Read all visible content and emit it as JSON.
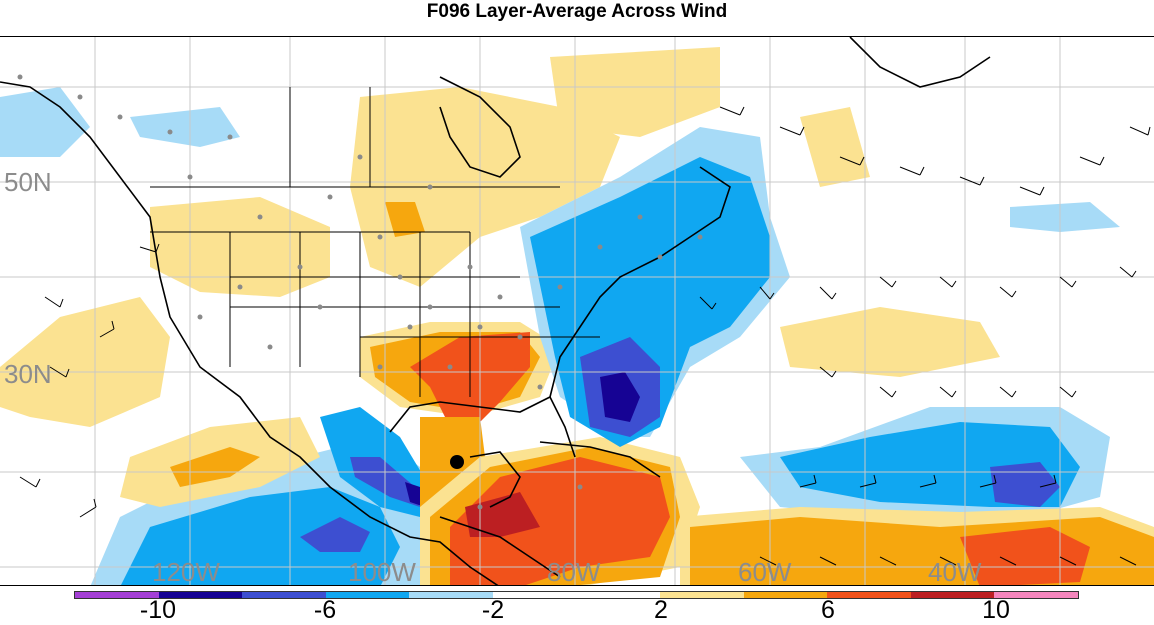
{
  "title": "F096 Layer-Average Across Wind",
  "map": {
    "lat_labels": [
      "50N",
      "30N"
    ],
    "lon_labels": [
      "120W",
      "100W",
      "80W",
      "60W",
      "40W"
    ]
  },
  "colorbar": {
    "colors": [
      "#a43fd5",
      "#160394",
      "#3d4fd1",
      "#10a7f1",
      "#a7dbf7",
      "#ffffff",
      "#ffffff",
      "#fbe291",
      "#f6a70e",
      "#f1521b",
      "#bc1f22",
      "#f586bd"
    ],
    "tick_labels": [
      "-10",
      "-6",
      "-2",
      "2",
      "6",
      "10"
    ]
  },
  "legend_colors": {
    "neg_strong": "#160394",
    "neg_medium": "#3d4fd1",
    "neg_light": "#10a7f1",
    "neg_faint": "#a7dbf7",
    "pos_faint": "#fbe291",
    "pos_light": "#f6a70e",
    "pos_medium": "#f1521b",
    "pos_strong": "#bc1f22"
  }
}
